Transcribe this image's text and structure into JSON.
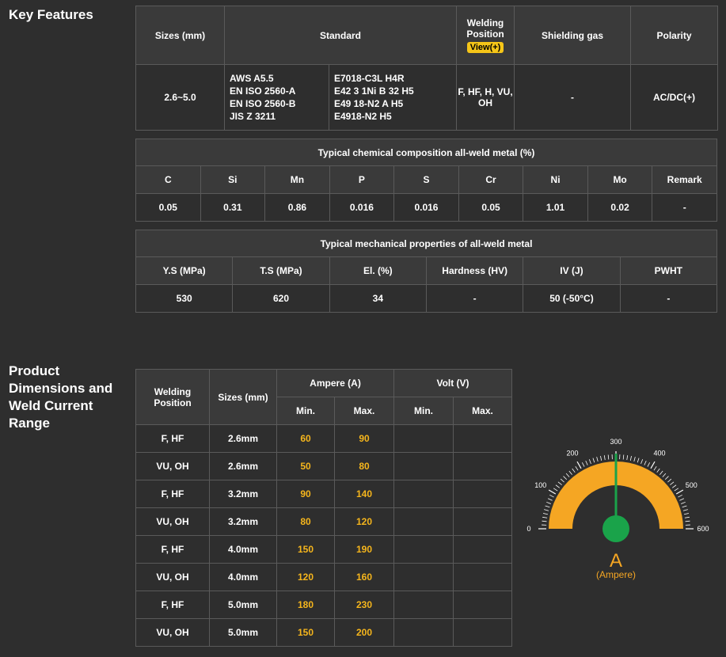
{
  "key_features": {
    "title": "Key Features",
    "headers": {
      "sizes": "Sizes (mm)",
      "standard": "Standard",
      "welding_position_line1": "Welding",
      "welding_position_line2": "Position",
      "view_button": "View(+)",
      "shielding_gas": "Shielding gas",
      "polarity": "Polarity"
    },
    "row": {
      "sizes": "2.6~5.0",
      "standard_left": [
        "AWS A5.5",
        "EN ISO 2560-A",
        "EN ISO 2560-B",
        "JIS Z 3211"
      ],
      "standard_right": [
        "E7018-C3L H4R",
        "E42 3 1Ni B 32 H5",
        "E49 18-N2 A H5",
        "E4918-N2 H5"
      ],
      "welding_position_line1": "F, HF, H, VU,",
      "welding_position_line2": "OH",
      "shielding_gas": "-",
      "polarity": "AC/DC(+)"
    }
  },
  "chemical": {
    "title": "Typical chemical composition all-weld metal (%)",
    "headers": [
      "C",
      "Si",
      "Mn",
      "P",
      "S",
      "Cr",
      "Ni",
      "Mo",
      "Remark"
    ],
    "values": [
      "0.05",
      "0.31",
      "0.86",
      "0.016",
      "0.016",
      "0.05",
      "1.01",
      "0.02",
      "-"
    ]
  },
  "mechanical": {
    "title": "Typical mechanical properties of all-weld metal",
    "headers": [
      "Y.S (MPa)",
      "T.S (MPa)",
      "El. (%)",
      "Hardness (HV)",
      "IV (J)",
      "PWHT"
    ],
    "values": [
      "530",
      "620",
      "34",
      "-",
      "50 (-50°C)",
      "-"
    ]
  },
  "dimensions": {
    "title_lines": [
      "Product",
      "Dimensions and",
      "Weld Current",
      "Range"
    ],
    "headers": {
      "welding_position_line1": "Welding",
      "welding_position_line2": "Position",
      "sizes": "Sizes (mm)",
      "ampere": "Ampere (A)",
      "volt": "Volt (V)",
      "amp_min": "Min.",
      "amp_max": "Max.",
      "volt_min": "Min.",
      "volt_max": "Max."
    },
    "rows": [
      {
        "position": "F, HF",
        "size": "2.6mm",
        "amin": "60",
        "amax": "90",
        "vmin": "",
        "vmax": ""
      },
      {
        "position": "VU, OH",
        "size": "2.6mm",
        "amin": "50",
        "amax": "80",
        "vmin": "",
        "vmax": ""
      },
      {
        "position": "F, HF",
        "size": "3.2mm",
        "amin": "90",
        "amax": "140",
        "vmin": "",
        "vmax": ""
      },
      {
        "position": "VU, OH",
        "size": "3.2mm",
        "amin": "80",
        "amax": "120",
        "vmin": "",
        "vmax": ""
      },
      {
        "position": "F, HF",
        "size": "4.0mm",
        "amin": "150",
        "amax": "190",
        "vmin": "",
        "vmax": ""
      },
      {
        "position": "VU, OH",
        "size": "4.0mm",
        "amin": "120",
        "amax": "160",
        "vmin": "",
        "vmax": ""
      },
      {
        "position": "F, HF",
        "size": "5.0mm",
        "amin": "180",
        "amax": "230",
        "vmin": "",
        "vmax": ""
      },
      {
        "position": "VU, OH",
        "size": "5.0mm",
        "amin": "150",
        "amax": "200",
        "vmin": "",
        "vmax": ""
      }
    ]
  },
  "gauge": {
    "ticks": [
      "0",
      "100",
      "200",
      "300",
      "400",
      "500",
      "600"
    ],
    "unit": "A",
    "unit_label": "(Ampere)",
    "value": 300,
    "max": 600,
    "colors": {
      "arc": "#f5a623",
      "needle": "#1aa34a",
      "text": "#f5a623"
    }
  }
}
